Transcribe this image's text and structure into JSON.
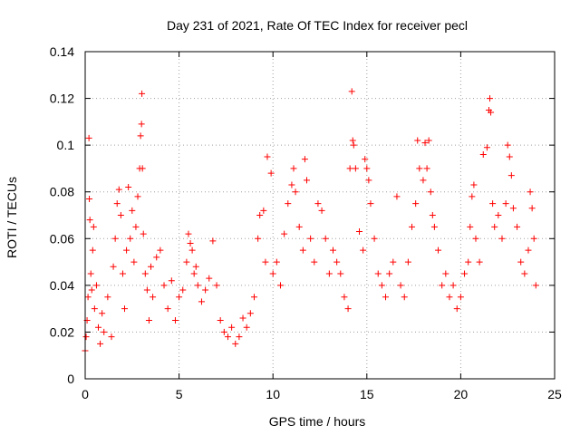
{
  "chart_data": {
    "type": "scatter",
    "title": "Day 231 of 2021, Rate Of TEC Index for receiver pecl",
    "xlabel": "GPS time / hours",
    "ylabel": "ROTI / TECUs",
    "xlim": [
      0,
      25
    ],
    "ylim": [
      0,
      0.14
    ],
    "xticks": [
      "0",
      "5",
      "10",
      "15",
      "20",
      "25"
    ],
    "yticks": [
      "0",
      "0.02",
      "0.04",
      "0.06",
      "0.08",
      "0.1",
      "0.12",
      "0.14"
    ],
    "grid": true,
    "marker": "plus",
    "color": "#ff0000",
    "series": [
      {
        "points": [
          [
            0.0,
            0.012
          ],
          [
            0.05,
            0.018
          ],
          [
            0.1,
            0.025
          ],
          [
            0.15,
            0.035
          ],
          [
            0.2,
            0.103
          ],
          [
            0.22,
            0.077
          ],
          [
            0.25,
            0.068
          ],
          [
            0.3,
            0.045
          ],
          [
            0.35,
            0.038
          ],
          [
            0.4,
            0.055
          ],
          [
            0.45,
            0.065
          ],
          [
            0.5,
            0.03
          ],
          [
            0.6,
            0.04
          ],
          [
            0.7,
            0.022
          ],
          [
            0.8,
            0.015
          ],
          [
            0.9,
            0.028
          ],
          [
            1.0,
            0.02
          ],
          [
            1.2,
            0.035
          ],
          [
            1.4,
            0.018
          ],
          [
            1.5,
            0.048
          ],
          [
            1.6,
            0.06
          ],
          [
            1.7,
            0.075
          ],
          [
            1.8,
            0.081
          ],
          [
            1.9,
            0.07
          ],
          [
            2.0,
            0.045
          ],
          [
            2.1,
            0.03
          ],
          [
            2.2,
            0.055
          ],
          [
            2.3,
            0.082
          ],
          [
            2.4,
            0.06
          ],
          [
            2.5,
            0.072
          ],
          [
            2.6,
            0.05
          ],
          [
            2.7,
            0.065
          ],
          [
            2.8,
            0.078
          ],
          [
            2.9,
            0.09
          ],
          [
            2.95,
            0.104
          ],
          [
            3.0,
            0.109
          ],
          [
            3.02,
            0.122
          ],
          [
            3.05,
            0.09
          ],
          [
            3.1,
            0.062
          ],
          [
            3.2,
            0.045
          ],
          [
            3.3,
            0.038
          ],
          [
            3.4,
            0.025
          ],
          [
            3.5,
            0.048
          ],
          [
            3.6,
            0.035
          ],
          [
            3.8,
            0.052
          ],
          [
            4.0,
            0.055
          ],
          [
            4.2,
            0.04
          ],
          [
            4.4,
            0.03
          ],
          [
            4.6,
            0.042
          ],
          [
            4.8,
            0.025
          ],
          [
            5.0,
            0.035
          ],
          [
            5.2,
            0.038
          ],
          [
            5.4,
            0.05
          ],
          [
            5.5,
            0.062
          ],
          [
            5.6,
            0.058
          ],
          [
            5.7,
            0.055
          ],
          [
            5.8,
            0.045
          ],
          [
            5.9,
            0.048
          ],
          [
            6.0,
            0.04
          ],
          [
            6.2,
            0.033
          ],
          [
            6.4,
            0.038
          ],
          [
            6.6,
            0.043
          ],
          [
            6.8,
            0.059
          ],
          [
            7.0,
            0.04
          ],
          [
            7.2,
            0.025
          ],
          [
            7.4,
            0.02
          ],
          [
            7.6,
            0.018
          ],
          [
            7.8,
            0.022
          ],
          [
            8.0,
            0.015
          ],
          [
            8.2,
            0.018
          ],
          [
            8.4,
            0.026
          ],
          [
            8.6,
            0.022
          ],
          [
            8.8,
            0.028
          ],
          [
            9.0,
            0.035
          ],
          [
            9.2,
            0.06
          ],
          [
            9.3,
            0.07
          ],
          [
            9.5,
            0.072
          ],
          [
            9.6,
            0.05
          ],
          [
            9.7,
            0.095
          ],
          [
            9.9,
            0.088
          ],
          [
            10.0,
            0.045
          ],
          [
            10.2,
            0.05
          ],
          [
            10.4,
            0.04
          ],
          [
            10.6,
            0.062
          ],
          [
            10.8,
            0.075
          ],
          [
            11.0,
            0.083
          ],
          [
            11.1,
            0.09
          ],
          [
            11.2,
            0.08
          ],
          [
            11.4,
            0.065
          ],
          [
            11.6,
            0.055
          ],
          [
            11.7,
            0.094
          ],
          [
            11.8,
            0.085
          ],
          [
            12.0,
            0.06
          ],
          [
            12.2,
            0.05
          ],
          [
            12.4,
            0.075
          ],
          [
            12.6,
            0.072
          ],
          [
            12.8,
            0.06
          ],
          [
            13.0,
            0.045
          ],
          [
            13.2,
            0.055
          ],
          [
            13.4,
            0.05
          ],
          [
            13.6,
            0.045
          ],
          [
            13.8,
            0.035
          ],
          [
            14.0,
            0.03
          ],
          [
            14.1,
            0.09
          ],
          [
            14.2,
            0.123
          ],
          [
            14.25,
            0.102
          ],
          [
            14.3,
            0.1
          ],
          [
            14.4,
            0.09
          ],
          [
            14.6,
            0.063
          ],
          [
            14.8,
            0.055
          ],
          [
            14.9,
            0.094
          ],
          [
            15.0,
            0.09
          ],
          [
            15.1,
            0.085
          ],
          [
            15.2,
            0.075
          ],
          [
            15.4,
            0.06
          ],
          [
            15.6,
            0.045
          ],
          [
            15.8,
            0.04
          ],
          [
            16.0,
            0.035
          ],
          [
            16.2,
            0.045
          ],
          [
            16.4,
            0.05
          ],
          [
            16.6,
            0.078
          ],
          [
            16.8,
            0.04
          ],
          [
            17.0,
            0.035
          ],
          [
            17.2,
            0.05
          ],
          [
            17.4,
            0.065
          ],
          [
            17.6,
            0.075
          ],
          [
            17.7,
            0.102
          ],
          [
            17.8,
            0.09
          ],
          [
            18.0,
            0.085
          ],
          [
            18.1,
            0.101
          ],
          [
            18.2,
            0.09
          ],
          [
            18.3,
            0.102
          ],
          [
            18.4,
            0.08
          ],
          [
            18.5,
            0.07
          ],
          [
            18.6,
            0.065
          ],
          [
            18.8,
            0.055
          ],
          [
            19.0,
            0.04
          ],
          [
            19.2,
            0.045
          ],
          [
            19.4,
            0.035
          ],
          [
            19.6,
            0.04
          ],
          [
            19.8,
            0.03
          ],
          [
            20.0,
            0.035
          ],
          [
            20.2,
            0.045
          ],
          [
            20.4,
            0.05
          ],
          [
            20.5,
            0.065
          ],
          [
            20.6,
            0.078
          ],
          [
            20.7,
            0.083
          ],
          [
            20.8,
            0.06
          ],
          [
            21.0,
            0.05
          ],
          [
            21.2,
            0.096
          ],
          [
            21.4,
            0.099
          ],
          [
            21.5,
            0.115
          ],
          [
            21.55,
            0.12
          ],
          [
            21.6,
            0.114
          ],
          [
            21.7,
            0.075
          ],
          [
            21.8,
            0.065
          ],
          [
            22.0,
            0.07
          ],
          [
            22.2,
            0.06
          ],
          [
            22.4,
            0.075
          ],
          [
            22.5,
            0.1
          ],
          [
            22.6,
            0.095
          ],
          [
            22.7,
            0.087
          ],
          [
            22.8,
            0.073
          ],
          [
            23.0,
            0.065
          ],
          [
            23.2,
            0.05
          ],
          [
            23.4,
            0.045
          ],
          [
            23.6,
            0.055
          ],
          [
            23.7,
            0.08
          ],
          [
            23.8,
            0.073
          ],
          [
            23.9,
            0.06
          ],
          [
            24.0,
            0.04
          ]
        ]
      }
    ]
  }
}
